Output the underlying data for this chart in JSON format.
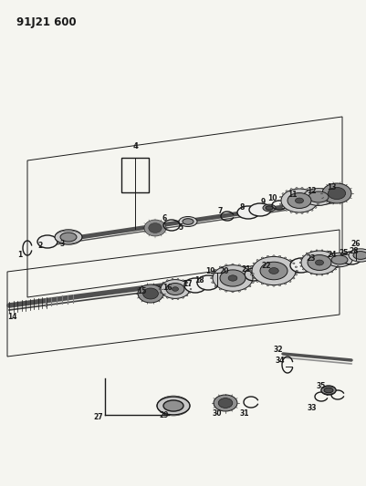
{
  "title": "91J21 600",
  "bg_color": "#f5f5f0",
  "line_color": "#1a1a1a",
  "gray_light": "#c8c8c8",
  "gray_mid": "#909090",
  "gray_dark": "#505050",
  "white": "#f0f0ee",
  "title_fontsize": 8.5
}
